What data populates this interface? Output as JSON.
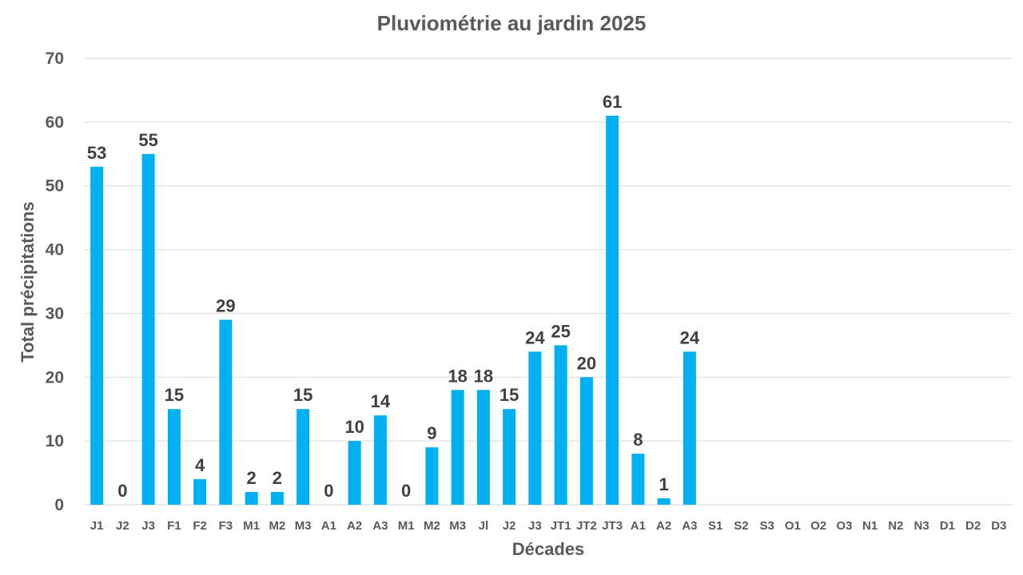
{
  "colors": {
    "bar": "#00B0F0",
    "text": "#595959",
    "label": "#404040",
    "grid": "#D9D9D9"
  },
  "chart_data": {
    "type": "bar",
    "title": "Pluviométrie au jardin 2025",
    "xlabel": "Décades",
    "ylabel": "Total précipitations",
    "ylim": [
      0,
      70
    ],
    "yticks": [
      0,
      10,
      20,
      30,
      40,
      50,
      60,
      70
    ],
    "grid": true,
    "legend": "none",
    "categories": [
      "J1",
      "J2",
      "J3",
      "F1",
      "F2",
      "F3",
      "M1",
      "M2",
      "M3",
      "A1",
      "A2",
      "A3",
      "M1",
      "M2",
      "M3",
      "Jl",
      "J2",
      "J3",
      "JT1",
      "JT2",
      "JT3",
      "A1",
      "A2",
      "A3",
      "S1",
      "S2",
      "S3",
      "O1",
      "O2",
      "O3",
      "N1",
      "N2",
      "N3",
      "D1",
      "D2",
      "D3"
    ],
    "values": [
      53,
      0,
      55,
      15,
      4,
      29,
      2,
      2,
      15,
      0,
      10,
      14,
      0,
      9,
      18,
      18,
      15,
      24,
      25,
      20,
      61,
      8,
      1,
      24,
      null,
      null,
      null,
      null,
      null,
      null,
      null,
      null,
      null,
      null,
      null,
      null
    ]
  }
}
